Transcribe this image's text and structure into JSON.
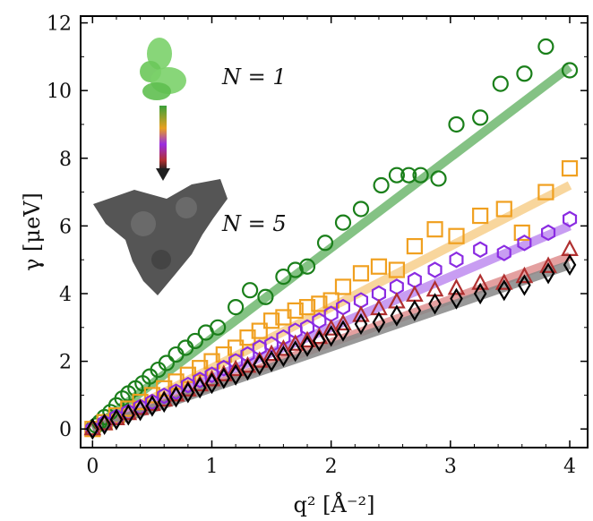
{
  "chart_data": {
    "type": "scatter",
    "xlabel": "q² [Å⁻²]",
    "ylabel": "γ [μeV]",
    "xlim": [
      -0.1,
      4.15
    ],
    "ylim": [
      -0.55,
      12.2
    ],
    "x_ticks": [
      0,
      1,
      2,
      3,
      4
    ],
    "y_ticks": [
      0,
      2,
      4,
      6,
      8,
      10,
      12
    ],
    "x_tick_labels": [
      "0",
      "1",
      "2",
      "3",
      "4"
    ],
    "y_tick_labels": [
      "0",
      "2",
      "4",
      "6",
      "8",
      "10",
      "12"
    ],
    "grid": false,
    "legend": "none",
    "annotations": [
      {
        "text": "N = 1"
      },
      {
        "text": "N = 5"
      }
    ],
    "series": [
      {
        "marker": "circle",
        "color": "#1a7f1a",
        "fit_color": "#6fb86f",
        "fit": [
          [
            0,
            0
          ],
          [
            4.0,
            10.7
          ]
        ],
        "x": [
          0.0,
          0.03,
          0.06,
          0.1,
          0.15,
          0.2,
          0.25,
          0.3,
          0.36,
          0.42,
          0.48,
          0.55,
          0.62,
          0.7,
          0.78,
          0.86,
          0.95,
          1.05,
          1.2,
          1.32,
          1.45,
          1.6,
          1.7,
          1.8,
          1.95,
          2.1,
          2.25,
          2.42,
          2.55,
          2.65,
          2.75,
          2.9,
          3.05,
          3.25,
          3.42,
          3.62,
          3.8,
          4.0
        ],
        "y": [
          0.0,
          0.1,
          0.2,
          0.35,
          0.5,
          0.7,
          0.9,
          1.05,
          1.2,
          1.35,
          1.55,
          1.75,
          1.95,
          2.2,
          2.4,
          2.6,
          2.85,
          3.0,
          3.6,
          4.1,
          3.9,
          4.5,
          4.7,
          4.8,
          5.5,
          6.1,
          6.5,
          7.2,
          7.5,
          7.5,
          7.5,
          7.4,
          9.0,
          9.2,
          10.2,
          10.5,
          11.3,
          10.6
        ]
      },
      {
        "marker": "square",
        "color": "#f0a020",
        "fit_color": "#f7cf8c",
        "fit": [
          [
            0,
            0
          ],
          [
            4.0,
            7.2
          ]
        ],
        "x": [
          0.0,
          0.1,
          0.2,
          0.3,
          0.4,
          0.5,
          0.6,
          0.7,
          0.8,
          0.9,
          1.0,
          1.1,
          1.2,
          1.3,
          1.4,
          1.5,
          1.6,
          1.7,
          1.8,
          1.9,
          2.0,
          2.1,
          2.25,
          2.4,
          2.55,
          2.7,
          2.87,
          3.05,
          3.25,
          3.45,
          3.6,
          3.8,
          4.0
        ],
        "y": [
          0.0,
          0.2,
          0.4,
          0.6,
          0.8,
          1.0,
          1.2,
          1.4,
          1.6,
          1.8,
          2.0,
          2.2,
          2.4,
          2.7,
          2.9,
          3.2,
          3.3,
          3.5,
          3.6,
          3.7,
          3.8,
          4.2,
          4.6,
          4.8,
          4.7,
          5.4,
          5.9,
          5.7,
          6.3,
          6.5,
          5.8,
          7.0,
          7.7
        ]
      },
      {
        "marker": "hexagon",
        "color": "#8a2be2",
        "fit_color": "#bf8cf0",
        "fit": [
          [
            0,
            0
          ],
          [
            4.0,
            6.0
          ]
        ],
        "x": [
          0.0,
          0.1,
          0.2,
          0.3,
          0.4,
          0.5,
          0.6,
          0.7,
          0.8,
          0.9,
          1.0,
          1.1,
          1.2,
          1.3,
          1.4,
          1.5,
          1.6,
          1.7,
          1.8,
          1.9,
          2.0,
          2.1,
          2.25,
          2.4,
          2.55,
          2.7,
          2.87,
          3.05,
          3.25,
          3.45,
          3.62,
          3.82,
          4.0
        ],
        "y": [
          0.0,
          0.18,
          0.35,
          0.5,
          0.65,
          0.8,
          0.98,
          1.1,
          1.3,
          1.45,
          1.6,
          1.8,
          2.0,
          2.2,
          2.4,
          2.5,
          2.7,
          2.9,
          3.0,
          3.2,
          3.4,
          3.6,
          3.8,
          4.0,
          4.2,
          4.4,
          4.7,
          5.0,
          5.3,
          5.2,
          5.5,
          5.8,
          6.2
        ]
      },
      {
        "marker": "triangle",
        "color": "#b03030",
        "fit_color": "#e09090",
        "fit": [
          [
            0,
            0
          ],
          [
            4.0,
            5.1
          ]
        ],
        "x": [
          0.0,
          0.1,
          0.2,
          0.3,
          0.4,
          0.5,
          0.6,
          0.7,
          0.8,
          0.9,
          1.0,
          1.1,
          1.2,
          1.3,
          1.4,
          1.5,
          1.6,
          1.7,
          1.8,
          1.9,
          2.0,
          2.1,
          2.25,
          2.4,
          2.55,
          2.7,
          2.87,
          3.05,
          3.25,
          3.45,
          3.62,
          3.82,
          4.0
        ],
        "y": [
          0.0,
          0.15,
          0.3,
          0.45,
          0.6,
          0.72,
          0.85,
          1.0,
          1.15,
          1.3,
          1.45,
          1.6,
          1.75,
          1.85,
          2.0,
          2.2,
          2.35,
          2.5,
          2.6,
          2.7,
          2.95,
          3.1,
          3.35,
          3.55,
          3.75,
          3.95,
          4.1,
          4.15,
          4.3,
          4.3,
          4.5,
          4.8,
          5.3
        ]
      },
      {
        "marker": "diamond",
        "color": "#000000",
        "fit_color": "#888888",
        "fit": [
          [
            0,
            0
          ],
          [
            4.0,
            4.85
          ]
        ],
        "x": [
          0.0,
          0.1,
          0.2,
          0.3,
          0.4,
          0.5,
          0.6,
          0.7,
          0.8,
          0.9,
          1.0,
          1.1,
          1.2,
          1.3,
          1.4,
          1.5,
          1.6,
          1.7,
          1.8,
          1.9,
          2.0,
          2.1,
          2.25,
          2.4,
          2.55,
          2.7,
          2.87,
          3.05,
          3.25,
          3.45,
          3.62,
          3.82,
          4.0
        ],
        "y": [
          0.0,
          0.14,
          0.28,
          0.42,
          0.55,
          0.68,
          0.8,
          0.95,
          1.08,
          1.22,
          1.35,
          1.5,
          1.6,
          1.75,
          1.9,
          2.0,
          2.15,
          2.3,
          2.45,
          2.6,
          2.75,
          2.9,
          3.1,
          3.15,
          3.35,
          3.5,
          3.7,
          3.85,
          4.0,
          4.1,
          4.25,
          4.6,
          4.85
        ]
      }
    ]
  }
}
